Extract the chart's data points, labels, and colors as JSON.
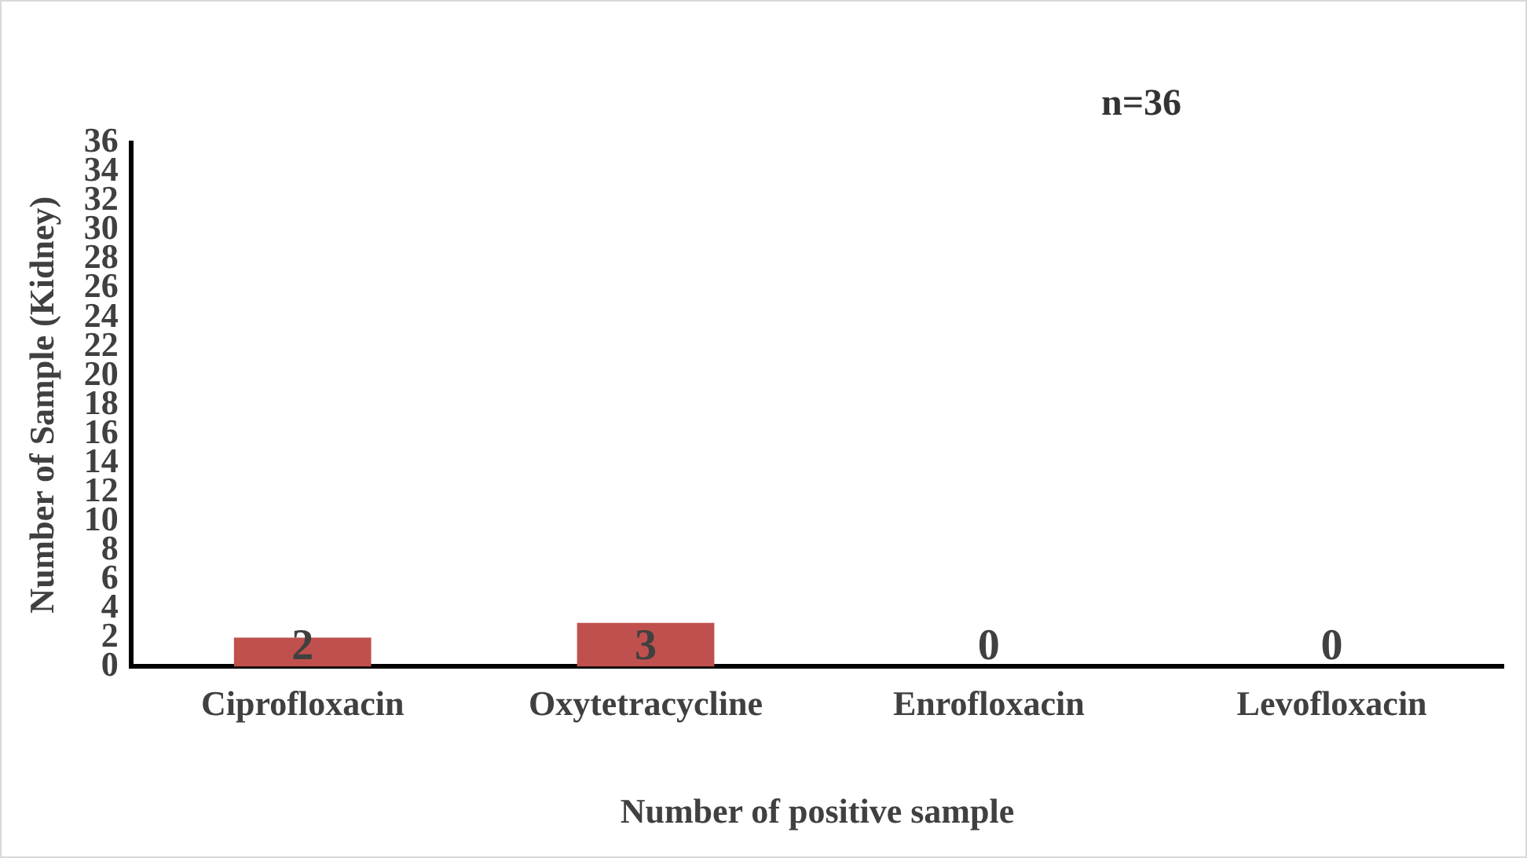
{
  "chart_data": {
    "type": "bar",
    "xlabel": "Number of positive sample",
    "ylabel": "Number of Sample (Kidney)",
    "categories": [
      "Ciprofloxacin",
      "Oxytetracycline",
      "Enrofloxacin",
      "Levofloxacin"
    ],
    "values": [
      2,
      3,
      0,
      0
    ],
    "color": "#c0504d",
    "ylim": [
      0,
      36
    ],
    "yticks": [
      0,
      2,
      4,
      6,
      8,
      10,
      12,
      14,
      16,
      18,
      20,
      22,
      24,
      26,
      28,
      30,
      32,
      34,
      36
    ],
    "grid": false,
    "legend": false,
    "data_labels": true,
    "annotations": [
      "n=36"
    ]
  }
}
